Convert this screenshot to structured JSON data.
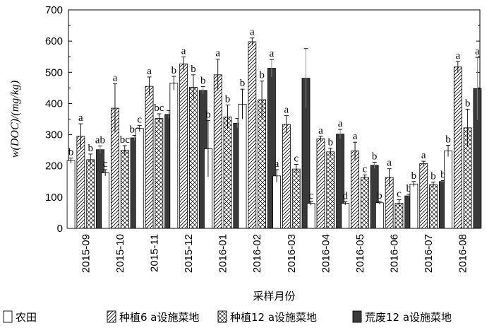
{
  "chart_data": {
    "type": "bar",
    "ylabel": "w(DOC)/(mg/kg)",
    "xlabel": "采样月份",
    "ylim": [
      0,
      700
    ],
    "yticks": [
      0,
      100,
      200,
      300,
      400,
      500,
      600,
      700
    ],
    "categories": [
      "2015-09",
      "2015-10",
      "2015-11",
      "2015-12",
      "2016-01",
      "2016-02",
      "2016-03",
      "2016-04",
      "2016-05",
      "2016-06",
      "2016-07",
      "2016-08"
    ],
    "series": [
      {
        "name": "农田",
        "pattern": "blank",
        "values": [
          217,
          178,
          320,
          465,
          255,
          398,
          168,
          80,
          80,
          82,
          142,
          248
        ],
        "errors": [
          8,
          10,
          10,
          22,
          90,
          48,
          20,
          6,
          5,
          4,
          8,
          18
        ],
        "labels": [
          "b",
          "c",
          "c",
          "b",
          "b",
          "b",
          "a",
          "c",
          "d",
          "b",
          "b",
          "b"
        ]
      },
      {
        "name": "种植6 a设施菜地",
        "pattern": "diag-right",
        "values": [
          295,
          385,
          455,
          527,
          492,
          598,
          333,
          287,
          248,
          163,
          207,
          517
        ],
        "errors": [
          40,
          78,
          30,
          22,
          50,
          12,
          28,
          8,
          28,
          28,
          8,
          18
        ],
        "labels": [
          "a",
          "a",
          "a",
          "a",
          "a",
          "a",
          "a",
          "a",
          "a",
          "a",
          "a",
          "a"
        ]
      },
      {
        "name": "种植12 a设施菜地",
        "pattern": "crosshatch",
        "values": [
          220,
          250,
          352,
          452,
          357,
          412,
          190,
          245,
          163,
          80,
          140,
          322
        ],
        "errors": [
          18,
          15,
          15,
          40,
          38,
          60,
          15,
          12,
          8,
          12,
          8,
          60
        ],
        "labels": [
          "b",
          "bc",
          "bc",
          "b",
          "b",
          "b",
          "c",
          "b",
          "c",
          "c",
          "b",
          "b"
        ]
      },
      {
        "name": "荒废12 a设施菜地",
        "pattern": "solid",
        "values": [
          252,
          290,
          365,
          442,
          337,
          513,
          481,
          302,
          202,
          104,
          150,
          448
        ],
        "errors": [
          12,
          8,
          12,
          12,
          15,
          28,
          95,
          15,
          10,
          5,
          3,
          100
        ],
        "labels": [
          "ab",
          "bc",
          "",
          "b",
          "",
          "a",
          "",
          "a",
          "b",
          "b",
          "b",
          "a"
        ]
      }
    ]
  }
}
